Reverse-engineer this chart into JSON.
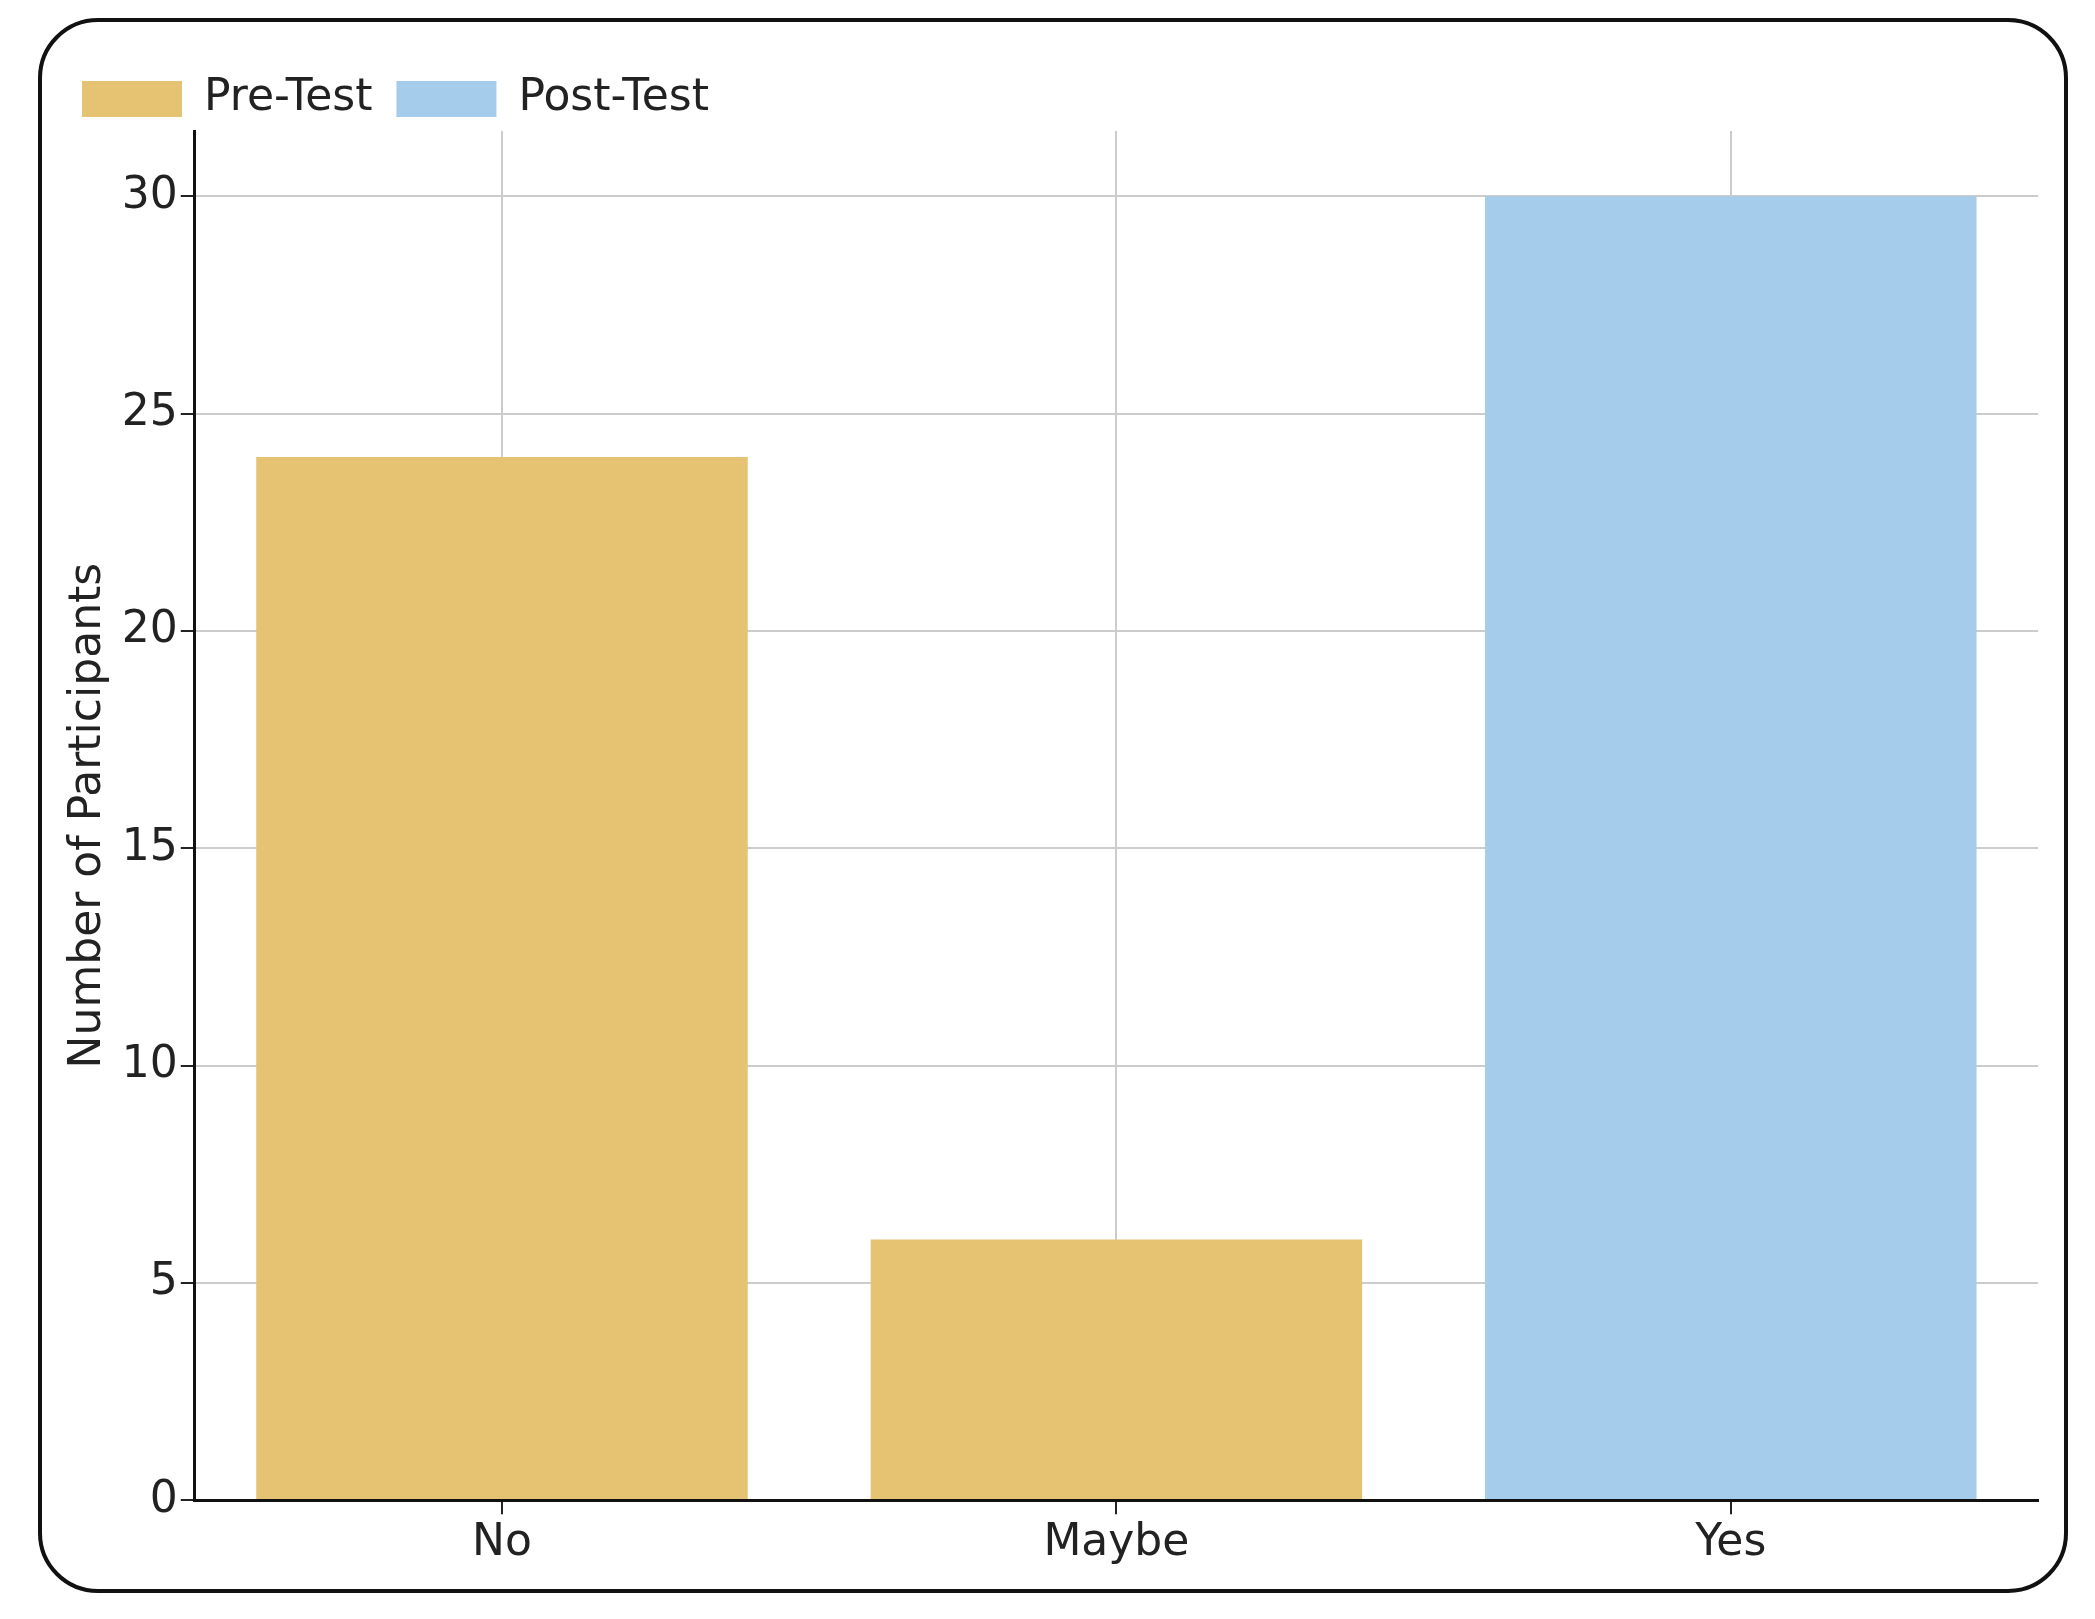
{
  "chart_data": {
    "type": "bar",
    "ylabel": "Number of Participants",
    "categories": [
      "No",
      "Maybe",
      "Yes"
    ],
    "series": [
      {
        "name": "Pre-Test",
        "color": "#e5c372",
        "values": [
          24,
          6,
          null
        ]
      },
      {
        "name": "Post-Test",
        "color": "#a5cceb",
        "values": [
          null,
          null,
          30
        ]
      }
    ],
    "stacked": true,
    "ylim": [
      0,
      31.5
    ],
    "yticks": [
      0,
      5,
      10,
      15,
      20,
      25,
      30
    ],
    "grid": true,
    "legend": "top left"
  }
}
